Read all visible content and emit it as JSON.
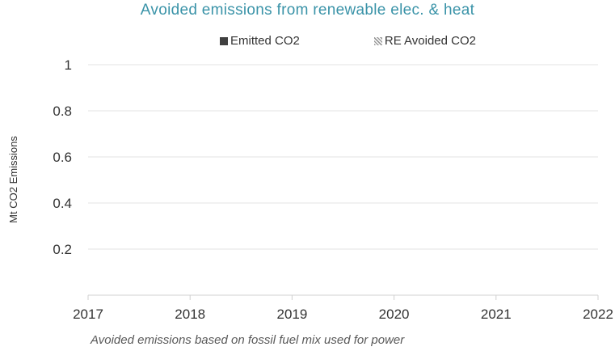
{
  "chart_data": {
    "type": "bar",
    "title": "Avoided emissions from renewable elec. & heat",
    "ylabel": "Mt CO2 Emissions",
    "xlabel": "",
    "x_ticks": [
      "2017",
      "2018",
      "2019",
      "2020",
      "2021",
      "2022"
    ],
    "y_ticks": [
      "0.2",
      "0.4",
      "0.6",
      "0.8",
      "1"
    ],
    "y_tick_values": [
      0.2,
      0.4,
      0.6,
      0.8,
      1
    ],
    "ylim": [
      0,
      1
    ],
    "grid": true,
    "legend_position": "top",
    "series": [
      {
        "name": "Emitted CO2",
        "values": [],
        "color": "#404040",
        "pattern": "solid"
      },
      {
        "name": "RE Avoided CO2",
        "values": [],
        "color": "#9a9a9a",
        "pattern": "hatched"
      }
    ],
    "annotation": "Avoided emissions based on fossil fuel mix used for power"
  }
}
